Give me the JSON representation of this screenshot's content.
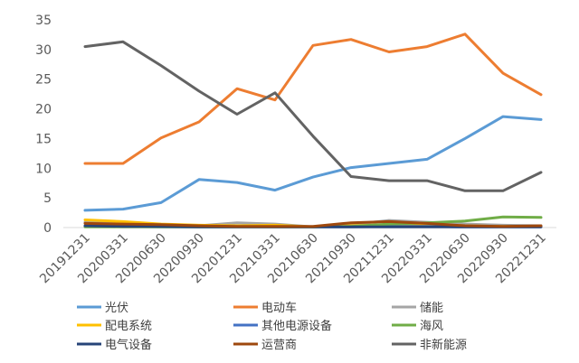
{
  "chart_data": {
    "type": "line",
    "categories": [
      "20191231",
      "20200331",
      "20200630",
      "20200930",
      "20201231",
      "20210331",
      "20210630",
      "20210930",
      "20211231",
      "20220331",
      "20220630",
      "20220930",
      "20221231"
    ],
    "ylim": [
      0,
      35
    ],
    "yticks": [
      0,
      5,
      10,
      15,
      20,
      25,
      30,
      35
    ],
    "grid": false,
    "legend_position": "bottom",
    "series": [
      {
        "name": "光伏",
        "color": "#5B9BD5",
        "values": [
          2.9,
          3.1,
          4.2,
          8.1,
          7.6,
          6.3,
          8.5,
          10.1,
          10.8,
          11.5,
          15.0,
          18.7,
          18.2
        ]
      },
      {
        "name": "电动车",
        "color": "#ED7D31",
        "values": [
          10.8,
          10.8,
          15.1,
          17.8,
          23.4,
          21.5,
          30.7,
          31.7,
          29.6,
          30.5,
          32.6,
          26.0,
          22.4
        ]
      },
      {
        "name": "储能",
        "color": "#A5A5A5",
        "values": [
          0.9,
          0.7,
          0.4,
          0.3,
          0.8,
          0.6,
          0.1,
          0.5,
          1.2,
          0.9,
          0.6,
          0.4,
          0.3
        ]
      },
      {
        "name": "配电系统",
        "color": "#FFC000",
        "values": [
          1.3,
          1.0,
          0.6,
          0.4,
          0.3,
          0.4,
          0.1,
          0.3,
          0.5,
          0.6,
          0.3,
          0.2,
          0.2
        ]
      },
      {
        "name": "其他电源设备",
        "color": "#4472C4",
        "values": [
          0.2,
          0.2,
          0.1,
          0.1,
          0.1,
          0.1,
          0.1,
          0.1,
          0.2,
          0.2,
          0.1,
          0.1,
          0.1
        ]
      },
      {
        "name": "海风",
        "color": "#70AD47",
        "values": [
          0.1,
          0.1,
          0.1,
          0.1,
          0.1,
          0.1,
          0.1,
          0.2,
          0.6,
          0.8,
          1.1,
          1.8,
          1.7
        ]
      },
      {
        "name": "电气设备",
        "color": "#264478",
        "values": [
          0.3,
          0.2,
          0.2,
          0.1,
          0.1,
          0.1,
          0.1,
          0.1,
          0.1,
          0.1,
          0.1,
          0.1,
          0.1
        ]
      },
      {
        "name": "运营商",
        "color": "#9E480E",
        "values": [
          0.7,
          0.6,
          0.5,
          0.3,
          0.2,
          0.2,
          0.2,
          0.8,
          1.0,
          0.7,
          0.3,
          0.2,
          0.3
        ]
      },
      {
        "name": "非新能源",
        "color": "#636363",
        "values": [
          30.5,
          31.3,
          27.3,
          23.0,
          19.1,
          22.7,
          15.4,
          8.6,
          7.9,
          7.9,
          6.2,
          6.2,
          9.3
        ]
      }
    ]
  }
}
